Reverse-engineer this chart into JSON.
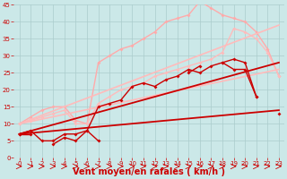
{
  "background_color": "#cbe8e8",
  "grid_color": "#aacccc",
  "xlabel": "Vent moyen/en rafales ( km/h )",
  "xlabel_color": "#cc0000",
  "xlabel_fontsize": 7,
  "xlim": [
    -0.5,
    23.5
  ],
  "ylim": [
    0,
    45
  ],
  "xticks": [
    0,
    1,
    2,
    3,
    4,
    5,
    6,
    7,
    8,
    9,
    10,
    11,
    12,
    13,
    14,
    15,
    16,
    17,
    18,
    19,
    20,
    21,
    22,
    23
  ],
  "yticks": [
    0,
    5,
    10,
    15,
    20,
    25,
    30,
    35,
    40,
    45
  ],
  "lines": [
    {
      "x": [
        0,
        1,
        2,
        3,
        4,
        5,
        6,
        7,
        8,
        9,
        10,
        11,
        12,
        13,
        14,
        15,
        16,
        17,
        18,
        19,
        20,
        21,
        22,
        23
      ],
      "y": [
        10,
        12,
        14,
        15,
        15,
        11,
        10,
        28,
        30,
        32,
        33,
        35,
        37,
        40,
        41,
        42,
        46,
        44,
        42,
        41,
        40,
        37,
        32,
        24
      ],
      "color": "#ffaaaa",
      "lw": 1.0,
      "marker": "D",
      "ms": 2.0
    },
    {
      "x": [
        0,
        23
      ],
      "y": [
        10,
        39
      ],
      "color": "#ffbbbb",
      "lw": 1.2,
      "marker": null,
      "ms": 0
    },
    {
      "x": [
        0,
        1,
        2,
        3,
        4,
        5,
        6,
        7,
        8,
        9,
        10,
        11,
        12,
        13,
        14,
        15,
        16,
        17,
        18,
        19,
        20,
        21,
        22,
        23
      ],
      "y": [
        10,
        11,
        12,
        13,
        14,
        10,
        10,
        16,
        18,
        20,
        21,
        22,
        24,
        25,
        26,
        27,
        28,
        29,
        31,
        38,
        37,
        35,
        31,
        24
      ],
      "color": "#ffbbbb",
      "lw": 1.0,
      "marker": "D",
      "ms": 2.0
    },
    {
      "x": [
        0,
        23
      ],
      "y": [
        10,
        26
      ],
      "color": "#ffbbbb",
      "lw": 1.2,
      "marker": null,
      "ms": 0
    },
    {
      "x": [
        0,
        1,
        2,
        3,
        4,
        5,
        6,
        7,
        8,
        9,
        10,
        11,
        12,
        13,
        14,
        15,
        16,
        17,
        18,
        19,
        20,
        21,
        22,
        23
      ],
      "y": [
        7,
        8,
        5,
        5,
        7,
        7,
        8,
        15,
        16,
        17,
        21,
        22,
        21,
        23,
        24,
        26,
        25,
        27,
        28,
        29,
        28,
        18,
        null,
        null
      ],
      "color": "#cc0000",
      "lw": 1.0,
      "marker": "D",
      "ms": 2.0
    },
    {
      "x": [
        0,
        1,
        2,
        3,
        4,
        5,
        6,
        7,
        8,
        9,
        10,
        11,
        12,
        13,
        14,
        15,
        16,
        17,
        18,
        19,
        20,
        21,
        22,
        23
      ],
      "y": [
        7,
        7,
        null,
        4,
        6,
        5,
        8,
        5,
        null,
        null,
        null,
        null,
        null,
        null,
        null,
        25,
        27,
        null,
        28,
        26,
        26,
        18,
        null,
        13
      ],
      "color": "#cc0000",
      "lw": 1.0,
      "marker": "D",
      "ms": 2.0
    },
    {
      "x": [
        0,
        23
      ],
      "y": [
        7,
        14
      ],
      "color": "#cc0000",
      "lw": 1.3,
      "marker": null,
      "ms": 0
    },
    {
      "x": [
        0,
        23
      ],
      "y": [
        7,
        28
      ],
      "color": "#cc0000",
      "lw": 1.3,
      "marker": null,
      "ms": 0
    }
  ]
}
